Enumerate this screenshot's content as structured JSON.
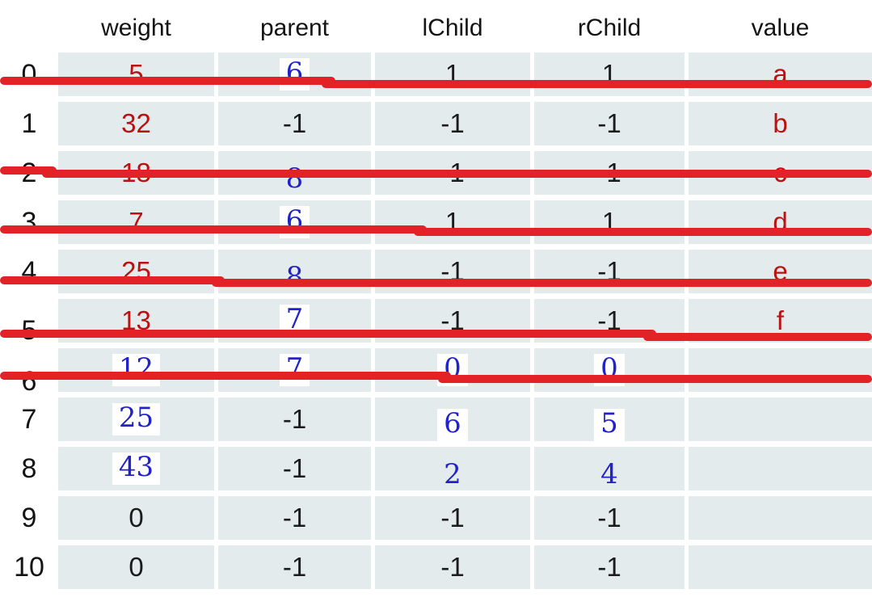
{
  "table": {
    "headers": [
      "weight",
      "parent",
      "lChild",
      "rChild",
      "value"
    ],
    "rows": [
      {
        "index": "0",
        "struck": true,
        "cells": [
          {
            "text": "5",
            "color": "red"
          },
          {
            "text": "6",
            "color": "blue",
            "patch": true
          },
          {
            "text": "1",
            "color": "black"
          },
          {
            "text": "1",
            "color": "black"
          },
          {
            "text": "a",
            "color": "red"
          }
        ]
      },
      {
        "index": "1",
        "struck": false,
        "cells": [
          {
            "text": "32",
            "color": "red"
          },
          {
            "text": "-1",
            "color": "black"
          },
          {
            "text": "-1",
            "color": "black"
          },
          {
            "text": "-1",
            "color": "black"
          },
          {
            "text": "b",
            "color": "red"
          }
        ]
      },
      {
        "index": "2",
        "struck": true,
        "cells": [
          {
            "text": "18",
            "color": "red"
          },
          {
            "text": "8",
            "color": "blue",
            "low": true
          },
          {
            "text": "-1",
            "color": "black"
          },
          {
            "text": "-1",
            "color": "black"
          },
          {
            "text": "c",
            "color": "red"
          }
        ]
      },
      {
        "index": "3",
        "struck": true,
        "cells": [
          {
            "text": "7",
            "color": "red"
          },
          {
            "text": "6",
            "color": "blue",
            "patch": true
          },
          {
            "text": "1",
            "color": "black"
          },
          {
            "text": "1",
            "color": "black"
          },
          {
            "text": "d",
            "color": "red"
          }
        ]
      },
      {
        "index": "4",
        "struck": true,
        "cells": [
          {
            "text": "25",
            "color": "red"
          },
          {
            "text": "8",
            "color": "blue",
            "low": true
          },
          {
            "text": "-1",
            "color": "black"
          },
          {
            "text": "-1",
            "color": "black"
          },
          {
            "text": "e",
            "color": "red"
          }
        ]
      },
      {
        "index": "5",
        "struck": true,
        "cells": [
          {
            "text": "13",
            "color": "red"
          },
          {
            "text": "7",
            "color": "blue",
            "patch": true
          },
          {
            "text": "-1",
            "color": "black"
          },
          {
            "text": "-1",
            "color": "black"
          },
          {
            "text": "f",
            "color": "red"
          }
        ]
      },
      {
        "index": "6",
        "struck": true,
        "cells": [
          {
            "text": "12",
            "color": "blue",
            "patch": true
          },
          {
            "text": "7",
            "color": "blue",
            "patch": true
          },
          {
            "text": "0",
            "color": "blue",
            "patch": true
          },
          {
            "text": "0",
            "color": "blue",
            "patch": true
          },
          {
            "text": "",
            "color": "black"
          }
        ]
      },
      {
        "index": "7",
        "struck": false,
        "cells": [
          {
            "text": "25",
            "color": "blue",
            "patch": true
          },
          {
            "text": "-1",
            "color": "black"
          },
          {
            "text": "6",
            "color": "blue",
            "patch": true,
            "low": true
          },
          {
            "text": "5",
            "color": "blue",
            "patch": true,
            "low": true
          },
          {
            "text": "",
            "color": "black"
          }
        ]
      },
      {
        "index": "8",
        "struck": false,
        "cells": [
          {
            "text": "43",
            "color": "blue",
            "patch": true
          },
          {
            "text": "-1",
            "color": "black"
          },
          {
            "text": "2",
            "color": "blue",
            "low": true
          },
          {
            "text": "4",
            "color": "blue",
            "low": true
          },
          {
            "text": "",
            "color": "black"
          }
        ]
      },
      {
        "index": "9",
        "struck": false,
        "cells": [
          {
            "text": "0",
            "color": "black"
          },
          {
            "text": "-1",
            "color": "black"
          },
          {
            "text": "-1",
            "color": "black"
          },
          {
            "text": "-1",
            "color": "black"
          },
          {
            "text": "",
            "color": "black"
          }
        ]
      },
      {
        "index": "10",
        "struck": false,
        "cells": [
          {
            "text": "0",
            "color": "black"
          },
          {
            "text": "-1",
            "color": "black"
          },
          {
            "text": "-1",
            "color": "black"
          },
          {
            "text": "-1",
            "color": "black"
          },
          {
            "text": "",
            "color": "black"
          }
        ]
      }
    ]
  },
  "colors": {
    "strike_line": "#e32228",
    "text_red": "#bb1111",
    "text_blue": "#2222cc",
    "text_black": "#1b1b1b",
    "row_band": "#e3ebec"
  }
}
